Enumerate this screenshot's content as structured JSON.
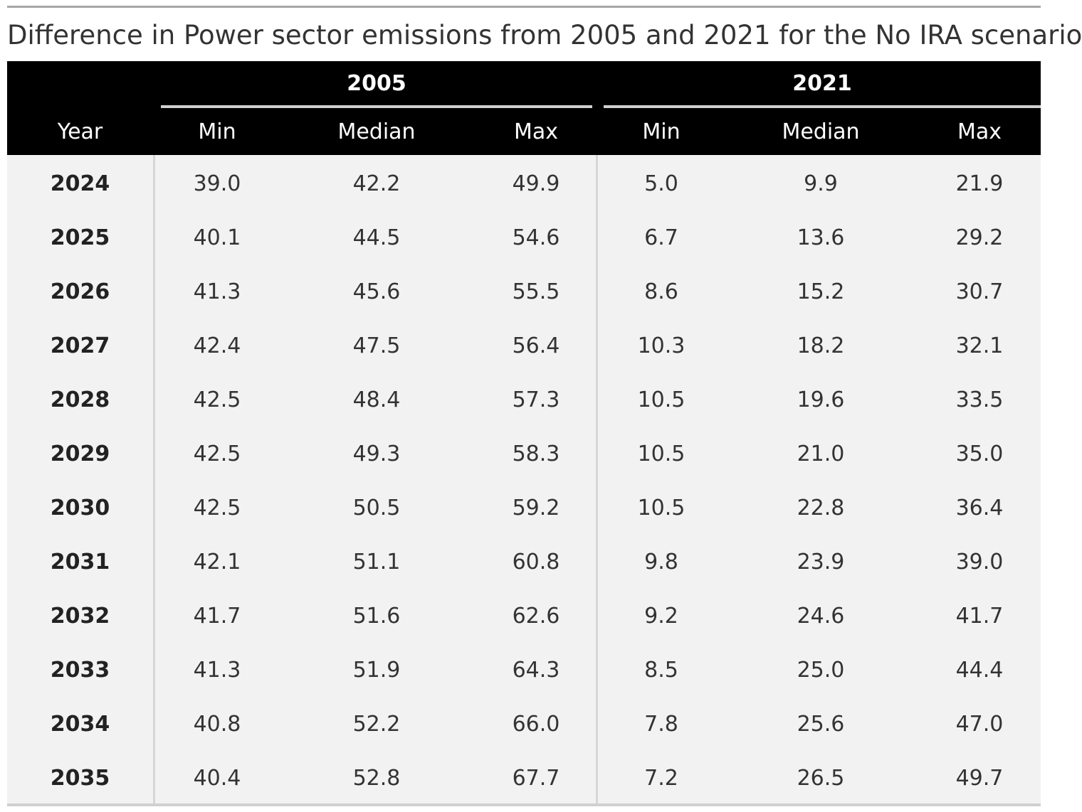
{
  "chart_data": {
    "type": "table",
    "title": "Difference in Power sector emissions from 2005 and 2021 for the No IRA scenario",
    "row_header": "Year",
    "column_groups": [
      {
        "label": "2005",
        "columns": [
          "Min",
          "Median",
          "Max"
        ]
      },
      {
        "label": "2021",
        "columns": [
          "Min",
          "Median",
          "Max"
        ]
      }
    ],
    "rows": [
      {
        "year": "2024",
        "values": [
          "39.0",
          "42.2",
          "49.9",
          "5.0",
          "9.9",
          "21.9"
        ]
      },
      {
        "year": "2025",
        "values": [
          "40.1",
          "44.5",
          "54.6",
          "6.7",
          "13.6",
          "29.2"
        ]
      },
      {
        "year": "2026",
        "values": [
          "41.3",
          "45.6",
          "55.5",
          "8.6",
          "15.2",
          "30.7"
        ]
      },
      {
        "year": "2027",
        "values": [
          "42.4",
          "47.5",
          "56.4",
          "10.3",
          "18.2",
          "32.1"
        ]
      },
      {
        "year": "2028",
        "values": [
          "42.5",
          "48.4",
          "57.3",
          "10.5",
          "19.6",
          "33.5"
        ]
      },
      {
        "year": "2029",
        "values": [
          "42.5",
          "49.3",
          "58.3",
          "10.5",
          "21.0",
          "35.0"
        ]
      },
      {
        "year": "2030",
        "values": [
          "42.5",
          "50.5",
          "59.2",
          "10.5",
          "22.8",
          "36.4"
        ]
      },
      {
        "year": "2031",
        "values": [
          "42.1",
          "51.1",
          "60.8",
          "9.8",
          "23.9",
          "39.0"
        ]
      },
      {
        "year": "2032",
        "values": [
          "41.7",
          "51.6",
          "62.6",
          "9.2",
          "24.6",
          "41.7"
        ]
      },
      {
        "year": "2033",
        "values": [
          "41.3",
          "51.9",
          "64.3",
          "8.5",
          "25.0",
          "44.4"
        ]
      },
      {
        "year": "2034",
        "values": [
          "40.8",
          "52.2",
          "66.0",
          "7.8",
          "25.6",
          "47.0"
        ]
      },
      {
        "year": "2035",
        "values": [
          "40.4",
          "52.8",
          "67.7",
          "7.2",
          "26.5",
          "49.7"
        ]
      }
    ],
    "colors": {
      "header_background": "#000000",
      "header_text": "#ffffff",
      "body_background": "#f2f2f2",
      "rule": "#d0d0d0"
    }
  }
}
